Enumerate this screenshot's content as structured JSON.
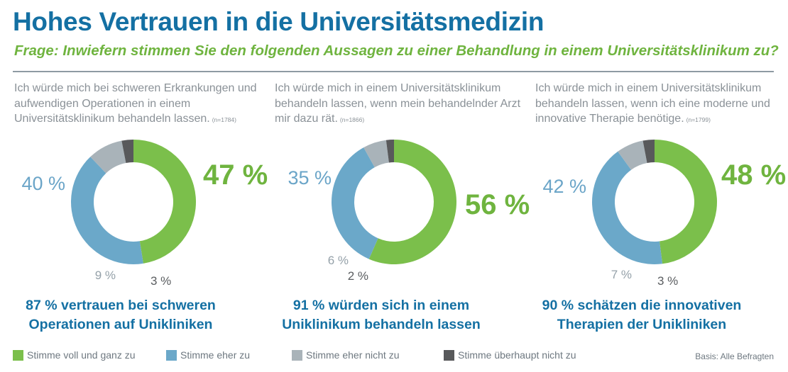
{
  "title": "Hohes Vertrauen in die Universitätsmedizin",
  "subtitle": "Frage: Inwiefern stimmen Sie den folgenden Aussagen zu einer Behandlung in einem Universitätsklinikum zu?",
  "colors": {
    "title": "#1470a3",
    "subtitle": "#6fb43f",
    "voll": "#7bbf4b",
    "eher": "#6ba8c9",
    "eher_nicht": "#a9b3b9",
    "ueberhaupt_nicht": "#58595b"
  },
  "legend": [
    {
      "label": "Stimme voll und ganz zu",
      "color": "#7bbf4b"
    },
    {
      "label": "Stimme eher zu",
      "color": "#6ba8c9"
    },
    {
      "label": "Stimme eher nicht zu",
      "color": "#a9b3b9"
    },
    {
      "label": "Stimme überhaupt nicht zu",
      "color": "#58595b"
    }
  ],
  "basis": "Basis: Alle Befragten",
  "chart_data": [
    {
      "type": "pie",
      "statement": "Ich würde mich bei schweren Erkrankungen und aufwendigen Operationen in einem Universitätsklinikum behandeln lassen.",
      "n": "(n=1784)",
      "categories": [
        "Stimme voll und ganz zu",
        "Stimme eher zu",
        "Stimme eher nicht zu",
        "Stimme überhaupt nicht zu"
      ],
      "values": [
        47,
        40,
        9,
        3
      ],
      "labels": [
        "47 %",
        "40 %",
        "9 %",
        "3 %"
      ],
      "summary": "87 % vertrauen bei schweren Operationen auf Unikliniken"
    },
    {
      "type": "pie",
      "statement": "Ich würde mich in einem Universitätsklinikum behandeln lassen, wenn mein behandelnder Arzt mir dazu rät.",
      "n": "(n=1866)",
      "categories": [
        "Stimme voll und ganz zu",
        "Stimme eher zu",
        "Stimme eher nicht zu",
        "Stimme überhaupt nicht zu"
      ],
      "values": [
        56,
        35,
        6,
        2
      ],
      "labels": [
        "56 %",
        "35 %",
        "6 %",
        "2 %"
      ],
      "summary": "91 % würden sich in einem Uniklinikum behandeln lassen"
    },
    {
      "type": "pie",
      "statement": "Ich würde mich in einem Universitätsklinikum behandeln lassen, wenn ich eine moderne und innovative Therapie benötige.",
      "n": "(n=1799)",
      "categories": [
        "Stimme voll und ganz zu",
        "Stimme eher zu",
        "Stimme eher nicht zu",
        "Stimme überhaupt nicht zu"
      ],
      "values": [
        48,
        42,
        7,
        3
      ],
      "labels": [
        "48 %",
        "42 %",
        "7 %",
        "3 %"
      ],
      "summary": "90 % schätzen die innovativen Therapien der Unikliniken"
    }
  ]
}
